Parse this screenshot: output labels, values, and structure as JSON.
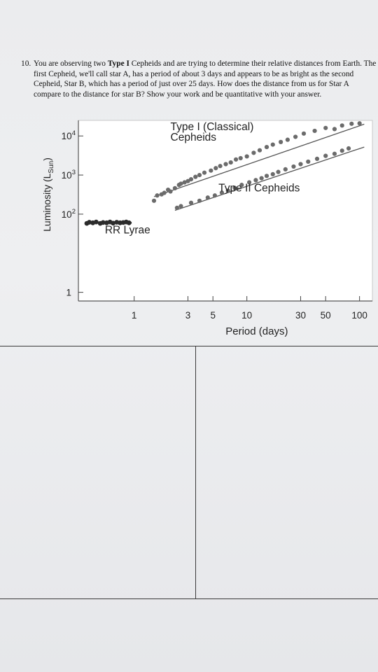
{
  "question": {
    "number": "10.",
    "text_before": "You are observing two ",
    "bold_term": "Type I",
    "text_after": " Cepheids and are trying to determine their relative distances from Earth. The first Cepheid, we'll call star A, has a period of about 3 days and appears to be as bright as the second Cepheid, Star B, which has a period of just over 25 days. How does the distance from us for Star A compare to the distance for star B? Show your work and be quantitative with your answer."
  },
  "chart_data": {
    "type": "scatter",
    "xscale": "log",
    "yscale": "log",
    "xlabel": "Period (days)",
    "ylabel": "Luminosity (L",
    "ylabel_sub": "Sun",
    "ylabel_close": ")",
    "xlim": [
      0.32,
      130
    ],
    "ylim": [
      0.6,
      25000
    ],
    "x_ticks": [
      {
        "value": 1,
        "label": "1"
      },
      {
        "value": 3,
        "label": "3"
      },
      {
        "value": 5,
        "label": "5"
      },
      {
        "value": 10,
        "label": "10"
      },
      {
        "value": 30,
        "label": "30"
      },
      {
        "value": 50,
        "label": "50"
      },
      {
        "value": 100,
        "label": "100"
      }
    ],
    "y_ticks": [
      {
        "value": 1,
        "base": "1",
        "exp": ""
      },
      {
        "value": 100,
        "base": "10",
        "exp": "2"
      },
      {
        "value": 1000,
        "base": "10",
        "exp": "3"
      },
      {
        "value": 10000,
        "base": "10",
        "exp": "4"
      }
    ],
    "annotations": [
      {
        "text": "Type I (Classical)",
        "x": 2.1,
        "y": 14000
      },
      {
        "text": "Cepheids",
        "x": 2.1,
        "y": 7500
      },
      {
        "text": "Type II Cepheids",
        "x": 5.6,
        "y": 380
      },
      {
        "text": "RR Lyrae",
        "x": 0.55,
        "y": 32
      }
    ],
    "series": [
      {
        "fit": [
          [
            1.5,
            280
          ],
          [
            110,
            20000
          ]
        ],
        "points": [
          [
            1.5,
            220
          ],
          [
            1.6,
            300
          ],
          [
            1.75,
            320
          ],
          [
            1.85,
            350
          ],
          [
            2.0,
            420
          ],
          [
            2.1,
            380
          ],
          [
            2.3,
            460
          ],
          [
            2.5,
            560
          ],
          [
            2.6,
            600
          ],
          [
            2.8,
            650
          ],
          [
            3.0,
            700
          ],
          [
            3.2,
            780
          ],
          [
            3.5,
            900
          ],
          [
            3.8,
            1000
          ],
          [
            4.2,
            1150
          ],
          [
            4.8,
            1300
          ],
          [
            5.3,
            1500
          ],
          [
            5.8,
            1700
          ],
          [
            6.5,
            1900
          ],
          [
            7.2,
            2100
          ],
          [
            8.0,
            2500
          ],
          [
            8.8,
            2700
          ],
          [
            10,
            3000
          ],
          [
            11.5,
            3700
          ],
          [
            13,
            4300
          ],
          [
            15,
            5200
          ],
          [
            17,
            6000
          ],
          [
            20,
            7000
          ],
          [
            23,
            8000
          ],
          [
            27,
            9500
          ],
          [
            32,
            11500
          ],
          [
            40,
            13500
          ],
          [
            50,
            16000
          ],
          [
            60,
            15000
          ],
          [
            70,
            18500
          ],
          [
            85,
            20500
          ],
          [
            100,
            21000
          ]
        ]
      },
      {
        "fit": [
          [
            2.3,
            125
          ],
          [
            110,
            5200
          ]
        ],
        "points": [
          [
            2.4,
            145
          ],
          [
            2.6,
            160
          ],
          [
            3.2,
            195
          ],
          [
            3.8,
            220
          ],
          [
            4.5,
            265
          ],
          [
            5.2,
            300
          ],
          [
            6.0,
            355
          ],
          [
            6.8,
            400
          ],
          [
            7.8,
            470
          ],
          [
            9.0,
            560
          ],
          [
            10.5,
            650
          ],
          [
            12,
            740
          ],
          [
            13.5,
            830
          ],
          [
            15,
            950
          ],
          [
            17,
            1050
          ],
          [
            19,
            1200
          ],
          [
            22,
            1400
          ],
          [
            26,
            1650
          ],
          [
            30,
            1900
          ],
          [
            35,
            2200
          ],
          [
            42,
            2600
          ],
          [
            50,
            3100
          ],
          [
            60,
            3500
          ],
          [
            70,
            4200
          ],
          [
            80,
            4800
          ]
        ]
      },
      {
        "fit": [
          [
            0.38,
            60
          ],
          [
            0.95,
            60
          ]
        ],
        "points": [
          [
            0.38,
            58
          ],
          [
            0.4,
            62
          ],
          [
            0.43,
            60
          ],
          [
            0.46,
            63
          ],
          [
            0.5,
            58
          ],
          [
            0.53,
            61
          ],
          [
            0.57,
            60
          ],
          [
            0.61,
            63
          ],
          [
            0.65,
            59
          ],
          [
            0.7,
            62
          ],
          [
            0.75,
            60
          ],
          [
            0.8,
            61
          ],
          [
            0.85,
            63
          ],
          [
            0.9,
            60
          ]
        ]
      }
    ]
  }
}
